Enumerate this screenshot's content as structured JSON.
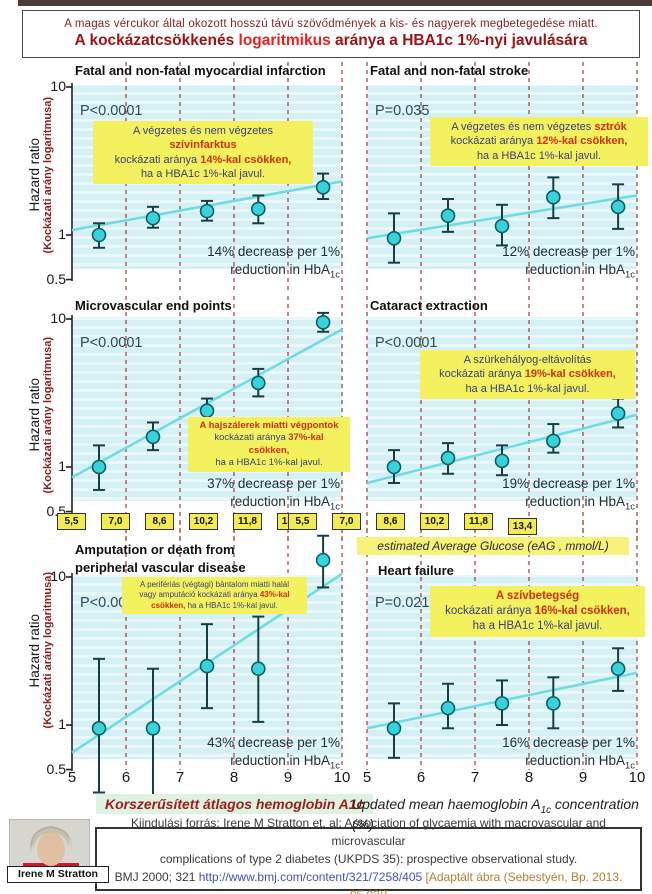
{
  "header": {
    "line1": "A magas vércukor által okozott hosszú távú szövődmények a kis- és nagyerek megbetegedése  miatt.",
    "line2_pre": "A kockázatcsökkenés ",
    "line2_highlight": "logaritmikus",
    "line2_post": " aránya a HBA1c 1%-nyi javulására"
  },
  "y_axis": {
    "label_en": "Hazard ratio",
    "label_hu": "(Kockázati arány logaritmusa)",
    "ticks": [
      "10",
      "1",
      "0.5"
    ]
  },
  "x_axis": {
    "ticks": [
      "5",
      "6",
      "7",
      "8",
      "9",
      "10"
    ]
  },
  "eag": {
    "values": [
      "5,5",
      "7,0",
      "8,6",
      "10,2",
      "11,8",
      "13,4"
    ],
    "label": "estimated Average Glucose (eAG , mmol/L)"
  },
  "footer": {
    "xlabel_hu": "Korszerűsített átlagos hemoglobin A1c",
    "xlabel_en_pre": "Updated mean haemoglobin A",
    "xlabel_en_sub": "1c",
    "xlabel_en_post": " concentration (%)"
  },
  "citation": {
    "line1": "Kiindulási forrás: Irene M Stratton et. al: Association of glycaemia with macrovascular and microvascular",
    "line2": "complications of type 2 diabetes (UKPDS 35): prospective observational study.",
    "line3_pre": "BMJ 2000; 321 ",
    "link": "http://www.bmj.com/content/321/7258/405",
    "line3_post": " [Adaptált ábra (Sebestyén, Bp. 2013. 05.02)]"
  },
  "photo": {
    "caption": "Irene M Stratton"
  },
  "chart_data": {
    "type": "scatter",
    "ylog": true,
    "xlim": [
      5,
      10
    ],
    "y_ticks": [
      10,
      1,
      0.5
    ],
    "x_tick_values": [
      5,
      6,
      7,
      8,
      9,
      10
    ],
    "x": [
      5.5,
      6.5,
      7.5,
      8.45,
      9.65
    ],
    "charts": [
      {
        "id": "myocardial-infarction",
        "title_lines": [
          "Fatal and non-fatal myocardial infarction"
        ],
        "p_label": "P<0.0001",
        "hazard_ratio": [
          1.0,
          1.3,
          1.45,
          1.5,
          2.1
        ],
        "ci_low": [
          0.82,
          1.12,
          1.25,
          1.2,
          1.75
        ],
        "ci_high": [
          1.2,
          1.55,
          1.7,
          1.85,
          2.6
        ],
        "trend_hr_at_5_and_10": [
          1.08,
          2.3
        ],
        "annotation_line1": "14% decrease per 1%",
        "annotation_line2": "reduction in HbA",
        "annotation_sub": "1c",
        "note_lines": [
          [
            {
              "t": "A végzetes és nem végzetes ",
              "c": "navy"
            },
            {
              "t": "szívinfarktus",
              "c": "red"
            }
          ],
          [
            {
              "t": "kockázati aránya ",
              "c": "navy"
            },
            {
              "t": "14%-kal csökken,",
              "c": "red"
            }
          ],
          [
            {
              "t": "ha a HBA1c 1%-kal javul.",
              "c": "navy"
            }
          ]
        ]
      },
      {
        "id": "stroke",
        "title_lines": [
          "Fatal and non-fatal stroke"
        ],
        "p_label": "P=0.035",
        "hazard_ratio": [
          0.95,
          1.35,
          1.15,
          1.8,
          1.55
        ],
        "ci_low": [
          0.65,
          1.05,
          0.85,
          1.3,
          1.1
        ],
        "ci_high": [
          1.4,
          1.75,
          1.6,
          2.45,
          2.2
        ],
        "trend_hr_at_5_and_10": [
          0.95,
          1.85
        ],
        "annotation_line1": "12% decrease per 1%",
        "annotation_line2": "reduction in HbA",
        "annotation_sub": "1c",
        "note_lines": [
          [
            {
              "t": "A végzetes és nem végzetes ",
              "c": "navy"
            },
            {
              "t": "sztrók",
              "c": "red"
            }
          ],
          [
            {
              "t": "kockázati aránya ",
              "c": "navy"
            },
            {
              "t": "12%-kal csökken,",
              "c": "red"
            }
          ],
          [
            {
              "t": "ha a HBA1c 1%-kal  javul.",
              "c": "navy"
            }
          ]
        ]
      },
      {
        "id": "microvascular-end-points",
        "title_lines": [
          "Microvascular end points"
        ],
        "p_label": "P<0.0001",
        "hazard_ratio": [
          1.0,
          1.6,
          2.4,
          3.7,
          9.5
        ],
        "ci_low": [
          0.7,
          1.3,
          2.0,
          3.0,
          8.2
        ],
        "ci_high": [
          1.4,
          2.0,
          2.9,
          4.6,
          11.0
        ],
        "trend_hr_at_5_and_10": [
          0.85,
          8.5
        ],
        "annotation_line1": "37% decrease per 1%",
        "annotation_line2": "reduction in HbA",
        "annotation_sub": "1c",
        "note_lines": [
          [
            {
              "t": "A hajszálerek miatti végpontok",
              "c": "red"
            }
          ],
          [
            {
              "t": "kockázati aránya ",
              "c": "navy"
            },
            {
              "t": "37%-kal",
              "c": "red"
            }
          ],
          [
            {
              "t": "csökken,",
              "c": "red"
            }
          ],
          [
            {
              "t": "ha a HBA1c 1%-kal  javul.",
              "c": "navy"
            }
          ]
        ]
      },
      {
        "id": "cataract-extraction",
        "title_lines": [
          "Cataract extraction"
        ],
        "p_label": "P<0.0001",
        "hazard_ratio": [
          1.0,
          1.15,
          1.1,
          1.5,
          2.3
        ],
        "ci_low": [
          0.78,
          0.9,
          0.88,
          1.25,
          1.85
        ],
        "ci_high": [
          1.3,
          1.45,
          1.4,
          1.95,
          2.9
        ],
        "trend_hr_at_5_and_10": [
          0.78,
          2.25
        ],
        "annotation_line1": "19% decrease per 1%",
        "annotation_line2": "reduction in HbA",
        "annotation_sub": "1c",
        "note_lines": [
          [
            {
              "t": "A szürkehályog-eltávolítás",
              "c": "navy"
            }
          ],
          [
            {
              "t": "kockázati aránya ",
              "c": "navy"
            },
            {
              "t": "19%-kal csökken,",
              "c": "red"
            }
          ],
          [
            {
              "t": "ha a HBA1c 1%-kal  javul.",
              "c": "navy"
            }
          ]
        ]
      },
      {
        "id": "amputation-pvd",
        "title_lines": [
          "Amputation or death from",
          "peripheral vascular disease"
        ],
        "p_label": "P<0.0001",
        "hazard_ratio": [
          0.95,
          0.95,
          2.5,
          2.4,
          13.0
        ],
        "ci_low": [
          0.35,
          0.3,
          1.3,
          1.05,
          8.5
        ],
        "ci_high": [
          2.8,
          2.4,
          4.8,
          5.4,
          19.0
        ],
        "trend_hr_at_5_and_10": [
          0.65,
          10.5
        ],
        "annotation_line1": "43% decrease per 1%",
        "annotation_line2": "reduction in HbA",
        "annotation_sub": "1c",
        "note_lines": [
          [
            {
              "t": "A perifériás (végtagi) bántalom miatti halál",
              "c": "navy"
            }
          ],
          [
            {
              "t": "vagy amputáció kockázati aránya ",
              "c": "navy"
            },
            {
              "t": "43%-kal",
              "c": "red"
            }
          ],
          [
            {
              "t": "csökken,",
              "c": "red"
            },
            {
              "t": " ha a HBA1c 1%-kal  javul.",
              "c": "navy"
            }
          ]
        ]
      },
      {
        "id": "heart-failure",
        "title_lines": [
          "Heart failure"
        ],
        "p_label": "P=0.021",
        "hazard_ratio": [
          0.95,
          1.3,
          1.4,
          1.4,
          2.4
        ],
        "ci_low": [
          0.6,
          0.95,
          1.0,
          0.95,
          1.7
        ],
        "ci_high": [
          1.4,
          1.9,
          2.0,
          2.1,
          3.3
        ],
        "trend_hr_at_5_and_10": [
          0.95,
          2.25
        ],
        "annotation_line1": "16% decrease per 1%",
        "annotation_line2": "reduction in HbA",
        "annotation_sub": "1c",
        "note_lines": [
          [
            {
              "t": "A szívbetegség",
              "c": "red"
            }
          ],
          [
            {
              "t": "kockázati aránya ",
              "c": "navy"
            },
            {
              "t": "16%-kal csökken,",
              "c": "red"
            }
          ],
          [
            {
              "t": "ha a HBA1c 1%-kal  javul.",
              "c": "navy"
            }
          ]
        ]
      }
    ]
  },
  "colors": {
    "plot_band": "#d5f1f6",
    "plot_stripe": "#e9f9fb",
    "gridline": "#9e3b36",
    "point_fill": "#3ad2da",
    "point_stroke": "#0b5f62",
    "error_bar": "#163e44",
    "trend_line": "#70dce1",
    "note_bg": "#f4f15e",
    "note_navy": "#3a3f7c",
    "note_red": "#d2300f"
  }
}
